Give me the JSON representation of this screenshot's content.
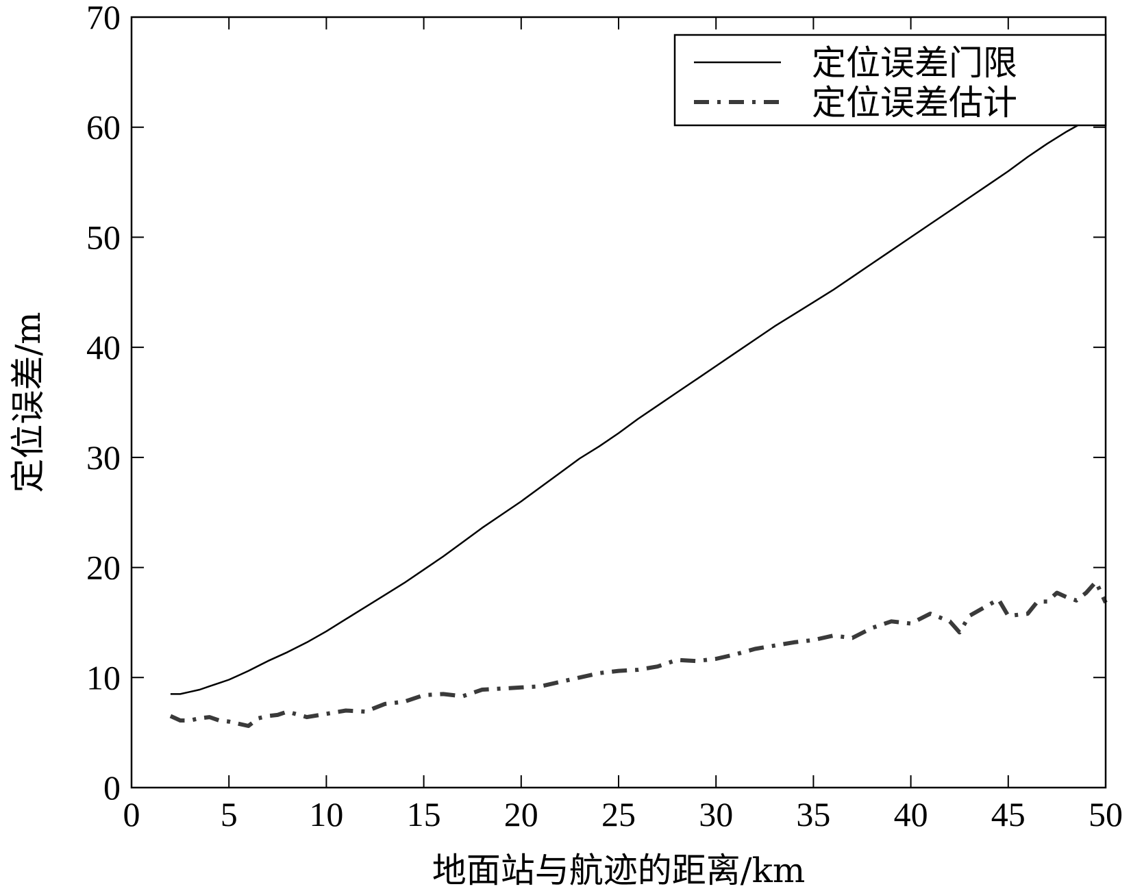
{
  "chart_data": {
    "type": "line",
    "title": "",
    "xlabel": "地面站与航迹的距离/km",
    "ylabel": "定位误差/m",
    "xlim": [
      0,
      50
    ],
    "ylim": [
      0,
      70
    ],
    "xticks": [
      0,
      5,
      10,
      15,
      20,
      25,
      30,
      35,
      40,
      45,
      50
    ],
    "yticks": [
      0,
      10,
      20,
      30,
      40,
      50,
      60,
      70
    ],
    "grid": false,
    "legend_position": "top-right",
    "series": [
      {
        "name": "定位误差门限",
        "style": "solid",
        "color": "#000000",
        "x": [
          2,
          2.5,
          3,
          3.5,
          4,
          4.5,
          5,
          5.5,
          6,
          7,
          8,
          9,
          10,
          11,
          12,
          13,
          14,
          15,
          16,
          17,
          18,
          19,
          20,
          21,
          22,
          23,
          24,
          25,
          26,
          27,
          28,
          29,
          30,
          31,
          32,
          33,
          34,
          35,
          36,
          37,
          38,
          39,
          40,
          41,
          42,
          43,
          44,
          45,
          46,
          47,
          48,
          49,
          50
        ],
        "y": [
          8.5,
          8.5,
          8.7,
          8.9,
          9.2,
          9.5,
          9.8,
          10.2,
          10.6,
          11.5,
          12.3,
          13.2,
          14.2,
          15.3,
          16.4,
          17.5,
          18.6,
          19.8,
          21.0,
          22.3,
          23.6,
          24.8,
          26.0,
          27.3,
          28.6,
          29.9,
          31.0,
          32.2,
          33.5,
          34.7,
          35.9,
          37.1,
          38.3,
          39.5,
          40.7,
          41.9,
          43.0,
          44.1,
          45.2,
          46.4,
          47.6,
          48.8,
          50.0,
          51.2,
          52.4,
          53.6,
          54.8,
          56.0,
          57.3,
          58.5,
          59.6,
          60.6,
          61.6
        ]
      },
      {
        "name": "定位误差估计",
        "style": "dash-dot",
        "color": "#3a3a3a",
        "x": [
          2,
          2.5,
          3,
          3.5,
          4,
          4.5,
          5,
          5.5,
          6,
          6.5,
          7,
          7.5,
          8,
          9,
          10,
          11,
          12,
          13,
          14,
          15,
          16,
          17,
          18,
          19,
          20,
          21,
          22,
          23,
          24,
          25,
          26,
          27,
          28,
          29,
          30,
          31,
          32,
          33,
          34,
          35,
          36,
          37,
          38,
          39,
          40,
          41,
          42,
          42.5,
          43,
          44,
          44.5,
          45,
          46,
          46.5,
          47,
          47.5,
          48,
          48.5,
          49,
          49.5,
          50
        ],
        "y": [
          6.5,
          6.1,
          6.1,
          6.3,
          6.4,
          6.1,
          6.0,
          5.8,
          5.6,
          6.3,
          6.5,
          6.6,
          6.9,
          6.4,
          6.7,
          7.0,
          6.9,
          7.6,
          7.8,
          8.4,
          8.5,
          8.3,
          8.9,
          9.0,
          9.1,
          9.2,
          9.6,
          10.0,
          10.4,
          10.6,
          10.7,
          11.0,
          11.6,
          11.5,
          11.7,
          12.1,
          12.6,
          12.9,
          13.2,
          13.4,
          13.8,
          13.6,
          14.5,
          15.1,
          14.9,
          15.8,
          15.1,
          14.1,
          15.6,
          16.6,
          17.1,
          15.6,
          15.8,
          16.9,
          16.9,
          17.7,
          17.3,
          17.0,
          17.7,
          18.7,
          16.8
        ]
      }
    ]
  }
}
